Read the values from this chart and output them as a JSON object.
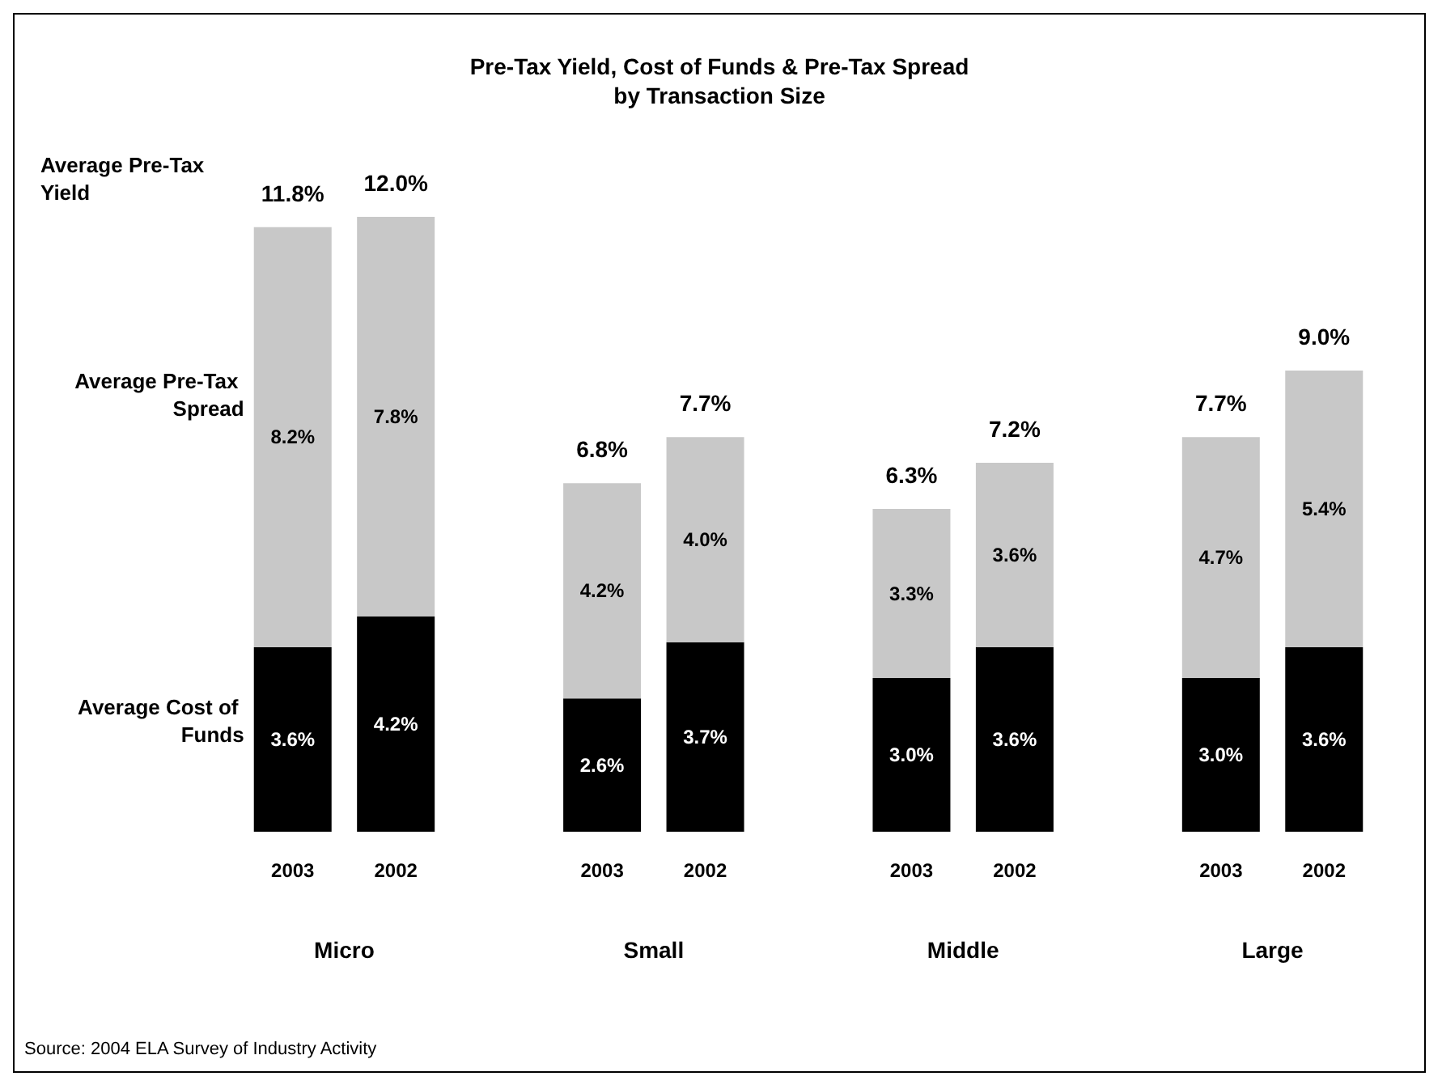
{
  "chart_data": {
    "type": "bar",
    "title": "Pre-Tax Yield, Cost of Funds & Pre-Tax Spread\nby Transaction Size",
    "categories": [
      "2003",
      "2002",
      null,
      "2003",
      "2002",
      null,
      "2003",
      "2002",
      null,
      "2003",
      "2002"
    ],
    "stacked": true,
    "legend": "left",
    "grid": false,
    "series": [
      {
        "name": "Average Cost of Funds",
        "color": "#000000",
        "values": [
          3.6,
          4.2,
          null,
          2.6,
          3.7,
          null,
          3.0,
          3.6,
          null,
          3.0,
          3.6
        ],
        "value_labels": [
          "3.6%",
          "4.2%",
          null,
          "2.6%",
          "3.7%",
          null,
          "3.0%",
          "3.6%",
          null,
          "3.0%",
          "3.6%"
        ]
      },
      {
        "name": "Average Pre-Tax Spread",
        "color": "#c8c8c8",
        "values": [
          8.2,
          7.8,
          null,
          4.2,
          4.0,
          null,
          3.3,
          3.6,
          null,
          4.7,
          5.4
        ],
        "value_labels": [
          "8.2%",
          "7.8%",
          null,
          "4.2%",
          "4.0%",
          null,
          "3.3%",
          "3.6%",
          null,
          "4.7%",
          "5.4%"
        ]
      }
    ],
    "totals": [
      "11.8%",
      "12.0%",
      null,
      "6.8%",
      "7.7%",
      null,
      "6.3%",
      "7.2%",
      null,
      "7.7%",
      "9.0%"
    ],
    "annotations": [
      "Average Pre-Tax Yield",
      "Micro",
      "Small",
      "Middle",
      "Large",
      "Source: 2004 ELA Survey of Industry Activity"
    ]
  }
}
